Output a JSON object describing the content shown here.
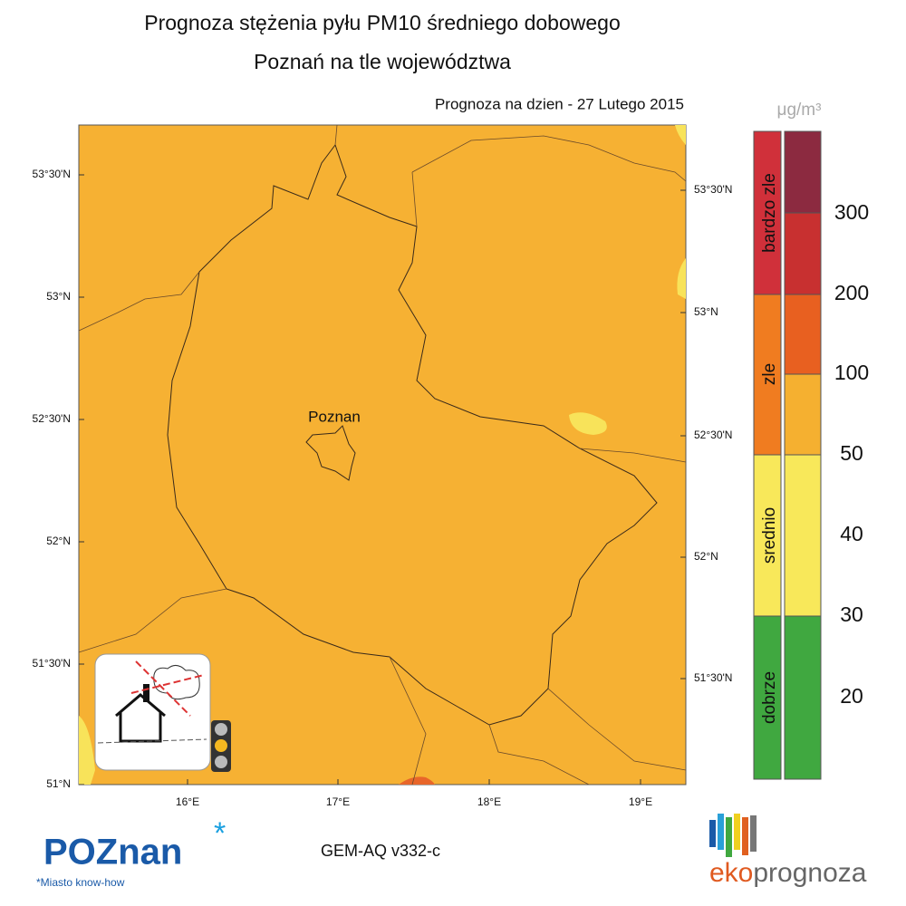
{
  "header": {
    "title": [
      "Prognoza stężenia pyłu PM10 średniego dobowego",
      "Poznań na tle województwa"
    ],
    "forecast_date": "Prognoza na dzien -  27 Lutego 2015"
  },
  "map": {
    "city_label": "Poznan",
    "lat_ticks_left": [
      "53°30'N",
      "53°N",
      "52°30'N",
      "52°N",
      "51°30'N",
      "51°N"
    ],
    "lat_ticks_right": [
      "53°30'N",
      "53°N",
      "52°30'N",
      "52°N",
      "51°30'N"
    ],
    "lon_ticks": [
      "16°E",
      "17°E",
      "18°E",
      "19°E"
    ]
  },
  "legend": {
    "unit": "μg/m³",
    "categories": [
      "bardzo zle",
      "zle",
      "srednio",
      "dobrze"
    ],
    "levels": [
      300,
      200,
      100,
      50,
      40,
      30,
      20
    ]
  },
  "footer": {
    "model": "GEM-AQ v332-c",
    "logo_left": "POZnan",
    "tagline": "*Miasto know-how",
    "logo_right": [
      "eko",
      "prognoza"
    ]
  }
}
